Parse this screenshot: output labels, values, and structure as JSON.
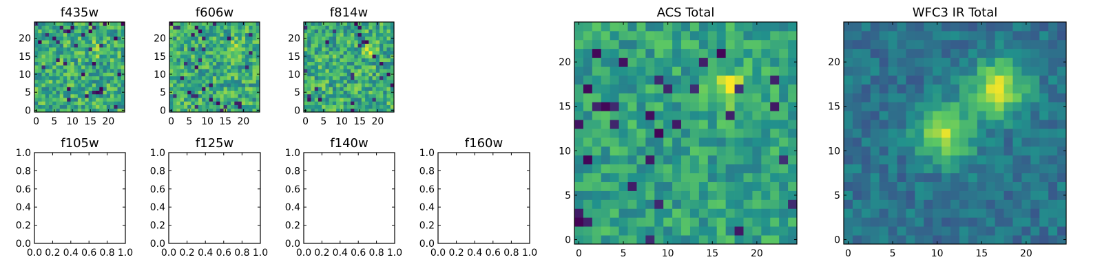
{
  "figure": {
    "background": "#ffffff",
    "colormap": "viridis",
    "colormap_stops": [
      "#440154",
      "#3b528b",
      "#21918c",
      "#5ec962",
      "#fde725"
    ]
  },
  "chart_data": [
    {
      "type": "heatmap",
      "title": "f435w",
      "xlim": [
        -0.5,
        24.5
      ],
      "ylim": [
        -0.5,
        24.5
      ],
      "xticks": [
        0,
        5,
        10,
        15,
        20
      ],
      "yticks": [
        0,
        5,
        10,
        15,
        20
      ],
      "grid_size": [
        25,
        25
      ],
      "bright_spot": [
        17,
        17
      ],
      "appearance": "noisy, mostly green-yellow, faint peak near (17,17)"
    },
    {
      "type": "heatmap",
      "title": "f606w",
      "xlim": [
        -0.5,
        24.5
      ],
      "ylim": [
        -0.5,
        24.5
      ],
      "xticks": [
        0,
        5,
        10,
        15,
        20
      ],
      "yticks": [
        0,
        5,
        10,
        15,
        20
      ],
      "grid_size": [
        25,
        25
      ],
      "bright_spot": [
        18,
        17
      ],
      "appearance": "noisy, mostly green-yellow, faint peak near (18,17)"
    },
    {
      "type": "heatmap",
      "title": "f814w",
      "xlim": [
        -0.5,
        24.5
      ],
      "ylim": [
        -0.5,
        24.5
      ],
      "xticks": [
        0,
        5,
        10,
        15,
        20
      ],
      "yticks": [
        0,
        5,
        10,
        15,
        20
      ],
      "grid_size": [
        25,
        25
      ],
      "bright_spot": [
        18,
        17
      ],
      "appearance": "noisy, mostly green-yellow, faint peak near (18,17)"
    },
    {
      "type": "empty",
      "title": "f105w",
      "xlim": [
        0,
        1
      ],
      "ylim": [
        0,
        1
      ],
      "xticks": [
        "0.0",
        "0.2",
        "0.4",
        "0.6",
        "0.8",
        "1.0"
      ],
      "yticks": [
        "0.0",
        "0.2",
        "0.4",
        "0.6",
        "0.8",
        "1.0"
      ]
    },
    {
      "type": "empty",
      "title": "f125w",
      "xlim": [
        0,
        1
      ],
      "ylim": [
        0,
        1
      ],
      "xticks": [
        "0.0",
        "0.2",
        "0.4",
        "0.6",
        "0.8",
        "1.0"
      ],
      "yticks": [
        "0.0",
        "0.2",
        "0.4",
        "0.6",
        "0.8",
        "1.0"
      ]
    },
    {
      "type": "empty",
      "title": "f140w",
      "xlim": [
        0,
        1
      ],
      "ylim": [
        0,
        1
      ],
      "xticks": [
        "0.0",
        "0.2",
        "0.4",
        "0.6",
        "0.8",
        "1.0"
      ],
      "yticks": [
        "0.0",
        "0.2",
        "0.4",
        "0.6",
        "0.8",
        "1.0"
      ]
    },
    {
      "type": "empty",
      "title": "f160w",
      "xlim": [
        0,
        1
      ],
      "ylim": [
        0,
        1
      ],
      "xticks": [
        "0.0",
        "0.2",
        "0.4",
        "0.6",
        "0.8",
        "1.0"
      ],
      "yticks": [
        "0.0",
        "0.2",
        "0.4",
        "0.6",
        "0.8",
        "1.0"
      ]
    },
    {
      "type": "heatmap",
      "title": "ACS Total",
      "xlim": [
        -0.5,
        24.5
      ],
      "ylim": [
        -0.5,
        24.5
      ],
      "xticks": [
        0,
        5,
        10,
        15,
        20
      ],
      "yticks": [
        0,
        5,
        10,
        15,
        20
      ],
      "grid_size": [
        25,
        25
      ],
      "bright_spot": [
        17,
        17
      ],
      "appearance": "noisy green field, bright yellow source centred near (17,17)"
    },
    {
      "type": "heatmap",
      "title": "WFC3 IR Total",
      "xlim": [
        -0.5,
        24.5
      ],
      "ylim": [
        -0.5,
        24.5
      ],
      "xticks": [
        0,
        5,
        10,
        15,
        20
      ],
      "yticks": [
        0,
        5,
        10,
        15,
        20
      ],
      "grid_size": [
        25,
        25
      ],
      "bright_spots": [
        [
          17,
          17
        ],
        [
          11,
          12
        ]
      ],
      "appearance": "smooth teal/blue background with two yellow sources near (17,17) and (11,12)"
    }
  ]
}
